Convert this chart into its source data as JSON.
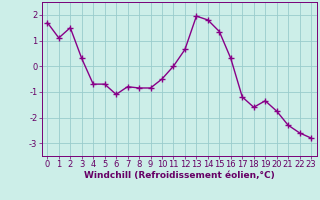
{
  "x": [
    0,
    1,
    2,
    3,
    4,
    5,
    6,
    7,
    8,
    9,
    10,
    11,
    12,
    13,
    14,
    15,
    16,
    17,
    18,
    19,
    20,
    21,
    22,
    23
  ],
  "y": [
    1.7,
    1.1,
    1.5,
    0.3,
    -0.7,
    -0.7,
    -1.1,
    -0.8,
    -0.85,
    -0.85,
    -0.5,
    0.0,
    0.65,
    1.95,
    1.8,
    1.35,
    0.3,
    -1.2,
    -1.6,
    -1.35,
    -1.75,
    -2.3,
    -2.6,
    -2.8
  ],
  "line_color": "#880088",
  "marker": "+",
  "markersize": 4,
  "linewidth": 1.0,
  "xlabel": "Windchill (Refroidissement éolien,°C)",
  "xlim": [
    -0.5,
    23.5
  ],
  "ylim": [
    -3.5,
    2.5
  ],
  "yticks": [
    -3,
    -2,
    -1,
    0,
    1,
    2
  ],
  "xticks": [
    0,
    1,
    2,
    3,
    4,
    5,
    6,
    7,
    8,
    9,
    10,
    11,
    12,
    13,
    14,
    15,
    16,
    17,
    18,
    19,
    20,
    21,
    22,
    23
  ],
  "bg_color": "#cceee8",
  "grid_color": "#99cccc",
  "tick_color": "#770077",
  "label_color": "#660066",
  "xlabel_fontsize": 6.5,
  "tick_fontsize": 6.0
}
